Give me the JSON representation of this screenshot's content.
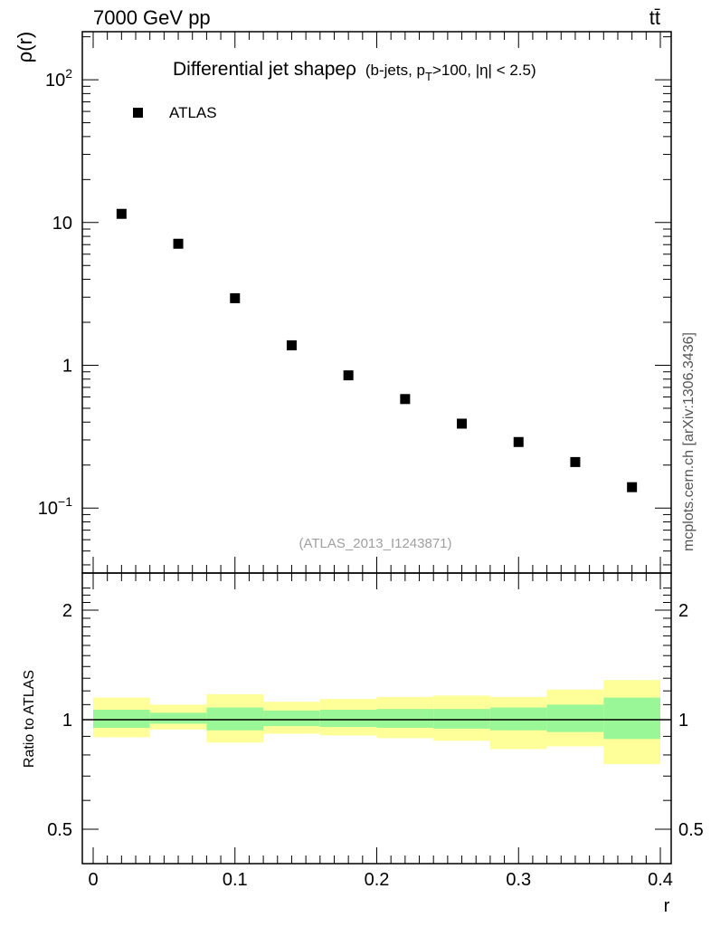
{
  "header": {
    "left": "7000 GeV pp",
    "right": "tt̄"
  },
  "side_text": "mcplots.cern.ch [arXiv:1306.3436]",
  "chart_data": [
    {
      "type": "scatter",
      "title_main": "Differential jet shapeρ",
      "title_detail_a": "(b-jets, p",
      "title_detail_sub": "T",
      "title_detail_b": ">100, |η| < 2.5)",
      "ylabel_main": "ρ(r)",
      "watermark": "(ATLAS_2013_I1243871)",
      "legend": "ATLAS",
      "legend_position": "top-left",
      "yscale": "log",
      "xlim": [
        0,
        0.4
      ],
      "ylim": [
        0.035,
        220
      ],
      "y_ticks": [
        {
          "value": 100,
          "base": "10",
          "exp": "2"
        },
        {
          "value": 10,
          "base": "10",
          "exp": ""
        },
        {
          "value": 1,
          "base": "1",
          "exp": ""
        },
        {
          "value": 0.1,
          "base": "10",
          "exp": "−1"
        }
      ],
      "series": [
        {
          "name": "ATLAS",
          "x": [
            0.02,
            0.06,
            0.1,
            0.14,
            0.18,
            0.22,
            0.26,
            0.3,
            0.34,
            0.38
          ],
          "y": [
            11.5,
            7.1,
            2.95,
            1.38,
            0.85,
            0.58,
            0.39,
            0.29,
            0.21,
            0.14
          ]
        }
      ]
    },
    {
      "type": "area",
      "ylabel_ratio": "Ratio to ATLAS",
      "xlabel": "r",
      "ylim": [
        0.4,
        2.3
      ],
      "x_ticks": [
        "0",
        "0.1",
        "0.2",
        "0.3",
        "0.4"
      ],
      "x_tick_values": [
        0,
        0.1,
        0.2,
        0.3,
        0.4
      ],
      "y_ticks": [
        "0.5",
        "1",
        "2"
      ],
      "y_tick_values": [
        0.5,
        1,
        2
      ],
      "bin_edges": [
        0,
        0.04,
        0.08,
        0.12,
        0.16,
        0.2,
        0.24,
        0.28,
        0.32,
        0.36,
        0.4
      ],
      "stat_band": {
        "lo": [
          0.95,
          0.975,
          0.935,
          0.96,
          0.955,
          0.95,
          0.945,
          0.935,
          0.925,
          0.885
        ],
        "hi": [
          1.065,
          1.045,
          1.08,
          1.06,
          1.065,
          1.07,
          1.07,
          1.08,
          1.1,
          1.15
        ]
      },
      "total_band": {
        "lo": [
          0.895,
          0.94,
          0.865,
          0.915,
          0.905,
          0.89,
          0.875,
          0.83,
          0.845,
          0.755
        ],
        "hi": [
          1.15,
          1.1,
          1.175,
          1.12,
          1.14,
          1.155,
          1.165,
          1.155,
          1.21,
          1.285
        ]
      },
      "colors": {
        "stat": "#99f797",
        "total": "#ffff99",
        "marker": "#000000"
      }
    }
  ]
}
